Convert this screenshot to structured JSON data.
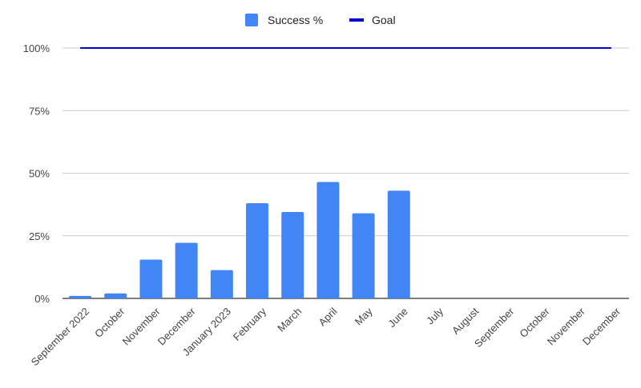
{
  "chart_data": {
    "type": "bar",
    "categories": [
      "September 2022",
      "October",
      "November",
      "December",
      "January 2023",
      "February",
      "March",
      "April",
      "May",
      "June",
      "July",
      "August",
      "September",
      "October",
      "November",
      "December"
    ],
    "series": [
      {
        "name": "Success %",
        "type": "bar",
        "color": "#4285F4",
        "values": [
          1,
          2,
          15.5,
          22.2,
          11.3,
          38,
          34.5,
          46.5,
          34,
          43,
          null,
          null,
          null,
          null,
          null,
          null
        ]
      },
      {
        "name": "Goal",
        "type": "line",
        "color": "#0000CC",
        "values": [
          100,
          100,
          100,
          100,
          100,
          100,
          100,
          100,
          100,
          100,
          100,
          100,
          100,
          100,
          100,
          100
        ]
      }
    ],
    "yticks": [
      "0%",
      "25%",
      "50%",
      "75%",
      "100%"
    ],
    "ylim": [
      0,
      100
    ],
    "legend_position": "top",
    "grid": true
  }
}
